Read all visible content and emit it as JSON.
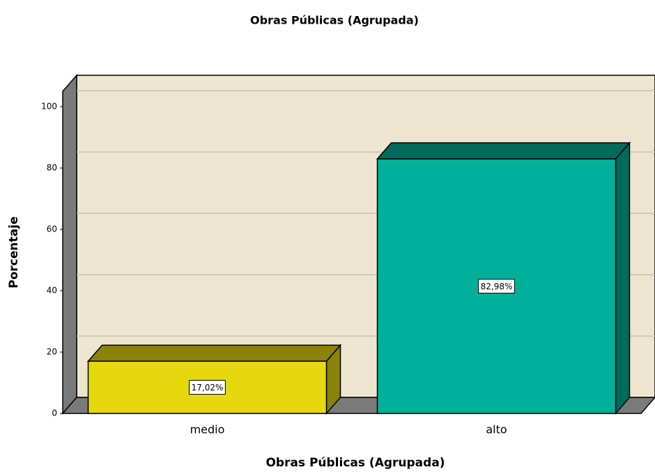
{
  "chart_data": {
    "type": "bar3d",
    "title": "Obras Públicas (Agrupada)",
    "xlabel": "Obras Públicas (Agrupada)",
    "ylabel": "Porcentaje",
    "categories": [
      "medio",
      "alto"
    ],
    "values": [
      17.02,
      82.98
    ],
    "value_labels": [
      "17,02%",
      "82,98%"
    ],
    "colors": [
      "#e6d80f",
      "#00b09b"
    ],
    "ylim": [
      0,
      105
    ],
    "yticks": [
      0,
      20,
      40,
      60,
      80,
      100
    ],
    "grid": true
  }
}
